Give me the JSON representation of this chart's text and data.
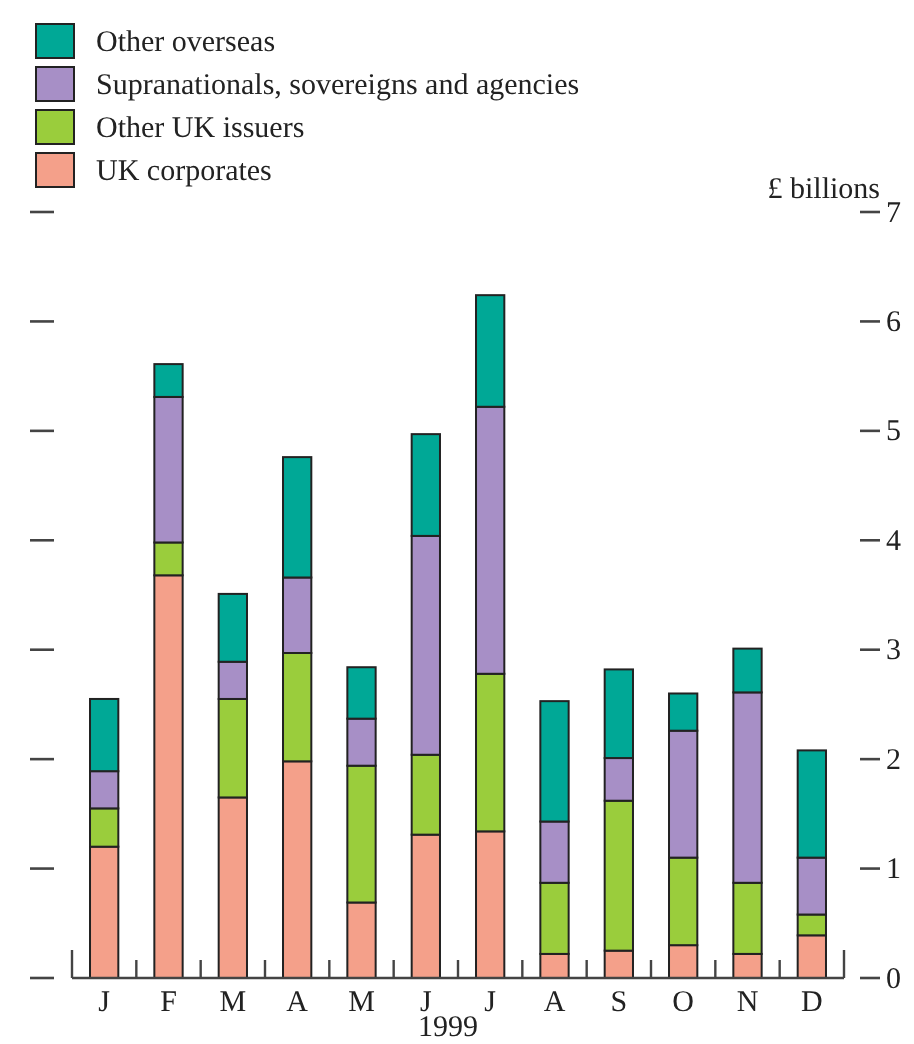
{
  "chart_data": {
    "type": "bar",
    "stacked": true,
    "ylabel": "£ billions",
    "xlabel": "1999",
    "categories": [
      "J",
      "F",
      "M",
      "A",
      "M",
      "J",
      "J",
      "A",
      "S",
      "O",
      "N",
      "D"
    ],
    "series": [
      {
        "name": "UK corporates",
        "color": "#f4a08a",
        "values": [
          1.2,
          3.68,
          1.65,
          1.98,
          0.69,
          1.31,
          1.34,
          0.22,
          0.25,
          0.3,
          0.22,
          0.39
        ]
      },
      {
        "name": "Other UK issuers",
        "color": "#9acd3c",
        "values": [
          0.35,
          0.3,
          0.9,
          0.99,
          1.25,
          0.73,
          1.44,
          0.65,
          1.37,
          0.8,
          0.65,
          0.19
        ]
      },
      {
        "name": "Supranationals, sovereigns and agencies",
        "color": "#a78fc6",
        "values": [
          0.34,
          1.33,
          0.34,
          0.69,
          0.43,
          2.0,
          2.44,
          0.56,
          0.39,
          1.16,
          1.74,
          0.52
        ]
      },
      {
        "name": "Other overseas",
        "color": "#00a896",
        "values": [
          0.66,
          0.3,
          0.62,
          1.1,
          0.47,
          0.93,
          1.02,
          1.1,
          0.81,
          0.34,
          0.4,
          0.98
        ]
      }
    ],
    "ylim": [
      0,
      7
    ],
    "yticks": [
      0,
      1,
      2,
      3,
      4,
      5,
      6,
      7
    ],
    "legend": "top left",
    "grid": false
  }
}
